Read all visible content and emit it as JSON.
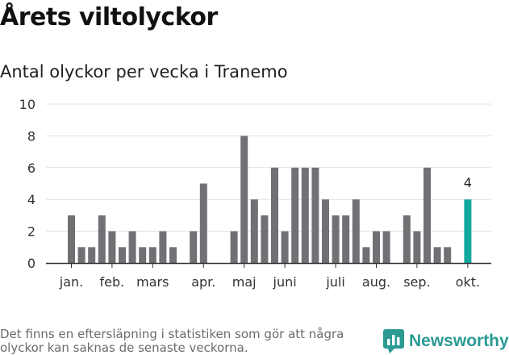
{
  "title": "Årets viltolyckor",
  "subtitle": "Antal olyckor per vecka i Tranemo",
  "footnote": "Det finns en eftersläpning i statistiken som gör att några olyckor kan saknas de senaste veckorna.",
  "brand": {
    "name": "Newsworthy",
    "icon": "newsworthy-logo-icon"
  },
  "colors": {
    "bar": "#717074",
    "highlight": "#13a89e",
    "grid": "#e0e0e0",
    "axis": "#333333",
    "brand": "#2a9a93"
  },
  "chart_data": {
    "type": "bar",
    "title": "Antal olyckor per vecka i Tranemo",
    "xlabel": "",
    "ylabel": "",
    "ylim": [
      0,
      10
    ],
    "yticks": [
      0,
      2,
      4,
      6,
      8,
      10
    ],
    "grid": true,
    "categories": [
      1,
      2,
      3,
      4,
      5,
      6,
      7,
      8,
      9,
      10,
      11,
      12,
      13,
      14,
      15,
      16,
      17,
      18,
      19,
      20,
      21,
      22,
      23,
      24,
      25,
      26,
      27,
      28,
      29,
      30,
      31,
      32,
      33,
      34,
      35,
      36,
      37,
      38,
      39,
      40
    ],
    "values": [
      3,
      1,
      1,
      3,
      2,
      1,
      2,
      1,
      1,
      2,
      1,
      0,
      2,
      5,
      0,
      0,
      2,
      8,
      4,
      3,
      6,
      2,
      6,
      6,
      6,
      4,
      3,
      3,
      4,
      1,
      2,
      2,
      0,
      3,
      2,
      6,
      1,
      1,
      0,
      4
    ],
    "month_labels": [
      {
        "label": "jan.",
        "at_week": 1
      },
      {
        "label": "feb.",
        "at_week": 5
      },
      {
        "label": "mars",
        "at_week": 9
      },
      {
        "label": "apr.",
        "at_week": 14
      },
      {
        "label": "maj",
        "at_week": 18
      },
      {
        "label": "juni",
        "at_week": 22
      },
      {
        "label": "juli",
        "at_week": 27
      },
      {
        "label": "aug.",
        "at_week": 31
      },
      {
        "label": "sep.",
        "at_week": 35
      },
      {
        "label": "okt.",
        "at_week": 40
      }
    ],
    "highlight": {
      "week": 40,
      "value": 4,
      "label": "4"
    }
  }
}
